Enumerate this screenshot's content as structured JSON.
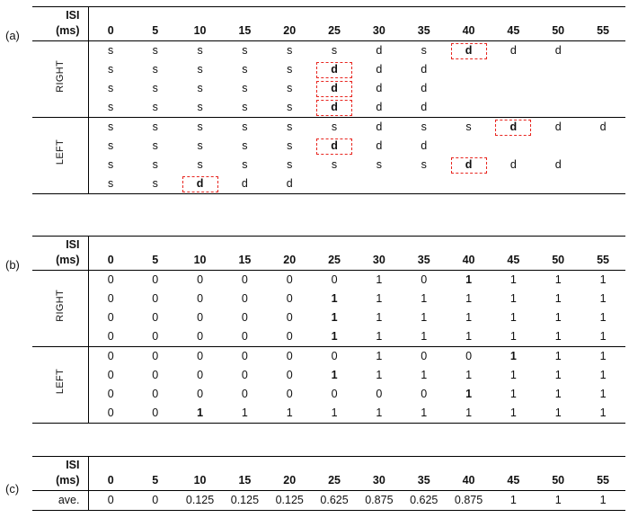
{
  "colors": {
    "detection_box": "#e8251f",
    "text": "#111111",
    "background": "#ffffff"
  },
  "chart_data": [
    {
      "type": "table",
      "panel_label": "(a)",
      "corner_header": [
        "ISI",
        "(ms)"
      ],
      "columns": [
        "0",
        "5",
        "10",
        "15",
        "20",
        "25",
        "30",
        "35",
        "40",
        "45",
        "50",
        "55"
      ],
      "row_groups": [
        {
          "label": "RIGHT",
          "rows": [
            [
              "s",
              "s",
              "s",
              "s",
              "s",
              "s",
              "d",
              "s",
              {
                "v": "d",
                "boxed": true
              },
              "d",
              "d",
              ""
            ],
            [
              "s",
              "s",
              "s",
              "s",
              "s",
              {
                "v": "d",
                "boxed": true
              },
              "d",
              "d",
              "",
              "",
              "",
              ""
            ],
            [
              "s",
              "s",
              "s",
              "s",
              "s",
              {
                "v": "d",
                "boxed": true
              },
              "d",
              "d",
              "",
              "",
              "",
              ""
            ],
            [
              "s",
              "s",
              "s",
              "s",
              "s",
              {
                "v": "d",
                "boxed": true
              },
              "d",
              "d",
              "",
              "",
              "",
              ""
            ]
          ]
        },
        {
          "label": "LEFT",
          "rows": [
            [
              "s",
              "s",
              "s",
              "s",
              "s",
              "s",
              "d",
              "s",
              "s",
              {
                "v": "d",
                "boxed": true
              },
              "d",
              "d"
            ],
            [
              "s",
              "s",
              "s",
              "s",
              "s",
              {
                "v": "d",
                "boxed": true
              },
              "d",
              "d",
              "",
              "",
              "",
              ""
            ],
            [
              "s",
              "s",
              "s",
              "s",
              "s",
              "s",
              "s",
              "s",
              {
                "v": "d",
                "boxed": true
              },
              "d",
              "d",
              ""
            ],
            [
              "s",
              "s",
              {
                "v": "d",
                "boxed": true
              },
              "d",
              "d",
              "",
              "",
              "",
              "",
              "",
              "",
              ""
            ]
          ]
        }
      ]
    },
    {
      "type": "table",
      "panel_label": "(b)",
      "corner_header": [
        "ISI",
        "(ms)"
      ],
      "columns": [
        "0",
        "5",
        "10",
        "15",
        "20",
        "25",
        "30",
        "35",
        "40",
        "45",
        "50",
        "55"
      ],
      "row_groups": [
        {
          "label": "RIGHT",
          "rows": [
            [
              "0",
              "0",
              "0",
              "0",
              "0",
              "0",
              "1",
              "0",
              {
                "v": "1",
                "bold": true
              },
              "1",
              "1",
              "1"
            ],
            [
              "0",
              "0",
              "0",
              "0",
              "0",
              {
                "v": "1",
                "bold": true
              },
              "1",
              "1",
              "1",
              "1",
              "1",
              "1"
            ],
            [
              "0",
              "0",
              "0",
              "0",
              "0",
              {
                "v": "1",
                "bold": true
              },
              "1",
              "1",
              "1",
              "1",
              "1",
              "1"
            ],
            [
              "0",
              "0",
              "0",
              "0",
              "0",
              {
                "v": "1",
                "bold": true
              },
              "1",
              "1",
              "1",
              "1",
              "1",
              "1"
            ]
          ]
        },
        {
          "label": "LEFT",
          "rows": [
            [
              "0",
              "0",
              "0",
              "0",
              "0",
              "0",
              "1",
              "0",
              "0",
              {
                "v": "1",
                "bold": true
              },
              "1",
              "1"
            ],
            [
              "0",
              "0",
              "0",
              "0",
              "0",
              {
                "v": "1",
                "bold": true
              },
              "1",
              "1",
              "1",
              "1",
              "1",
              "1"
            ],
            [
              "0",
              "0",
              "0",
              "0",
              "0",
              "0",
              "0",
              "0",
              {
                "v": "1",
                "bold": true
              },
              "1",
              "1",
              "1"
            ],
            [
              "0",
              "0",
              {
                "v": "1",
                "bold": true
              },
              "1",
              "1",
              "1",
              "1",
              "1",
              "1",
              "1",
              "1",
              "1"
            ]
          ]
        }
      ]
    },
    {
      "type": "table",
      "panel_label": "(c)",
      "corner_header": [
        "ISI",
        "(ms)"
      ],
      "columns": [
        "0",
        "5",
        "10",
        "15",
        "20",
        "25",
        "30",
        "35",
        "40",
        "45",
        "50",
        "55"
      ],
      "rows": [
        {
          "label": "ave.",
          "values": [
            "0",
            "0",
            "0.125",
            "0.125",
            "0.125",
            "0.625",
            "0.875",
            "0.625",
            "0.875",
            "1",
            "1",
            "1"
          ]
        }
      ]
    }
  ]
}
